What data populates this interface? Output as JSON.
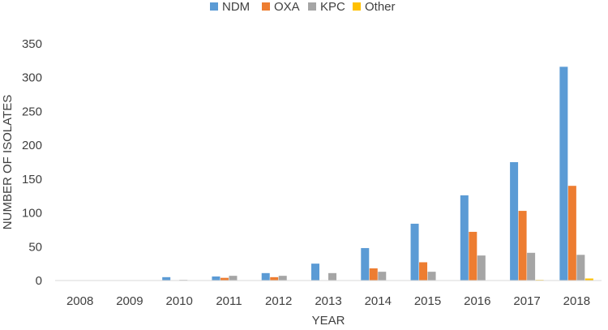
{
  "chart_data": {
    "type": "bar",
    "title": "",
    "xlabel": "YEAR",
    "ylabel": "NUMBER OF ISOLATES",
    "ylim": [
      0,
      350
    ],
    "yticks": [
      0,
      50,
      100,
      150,
      200,
      250,
      300,
      350
    ],
    "grid": false,
    "legend_position": "top",
    "categories": [
      "2008",
      "2009",
      "2010",
      "2011",
      "2012",
      "2013",
      "2014",
      "2015",
      "2016",
      "2017",
      "2018"
    ],
    "series": [
      {
        "name": "NDM",
        "color": "#5B9BD5",
        "values": [
          0,
          0,
          5,
          6,
          11,
          25,
          48,
          84,
          126,
          175,
          316
        ]
      },
      {
        "name": "OXA",
        "color": "#ED7D31",
        "values": [
          0,
          0,
          0,
          4,
          5,
          0,
          18,
          27,
          72,
          103,
          140
        ]
      },
      {
        "name": "KPC",
        "color": "#A5A5A5",
        "values": [
          0,
          0,
          1,
          7,
          7,
          11,
          13,
          13,
          37,
          41,
          38
        ]
      },
      {
        "name": "Other",
        "color": "#FFC000",
        "values": [
          0,
          0,
          0,
          0,
          0,
          0,
          0,
          0,
          0,
          1,
          3
        ]
      }
    ]
  }
}
